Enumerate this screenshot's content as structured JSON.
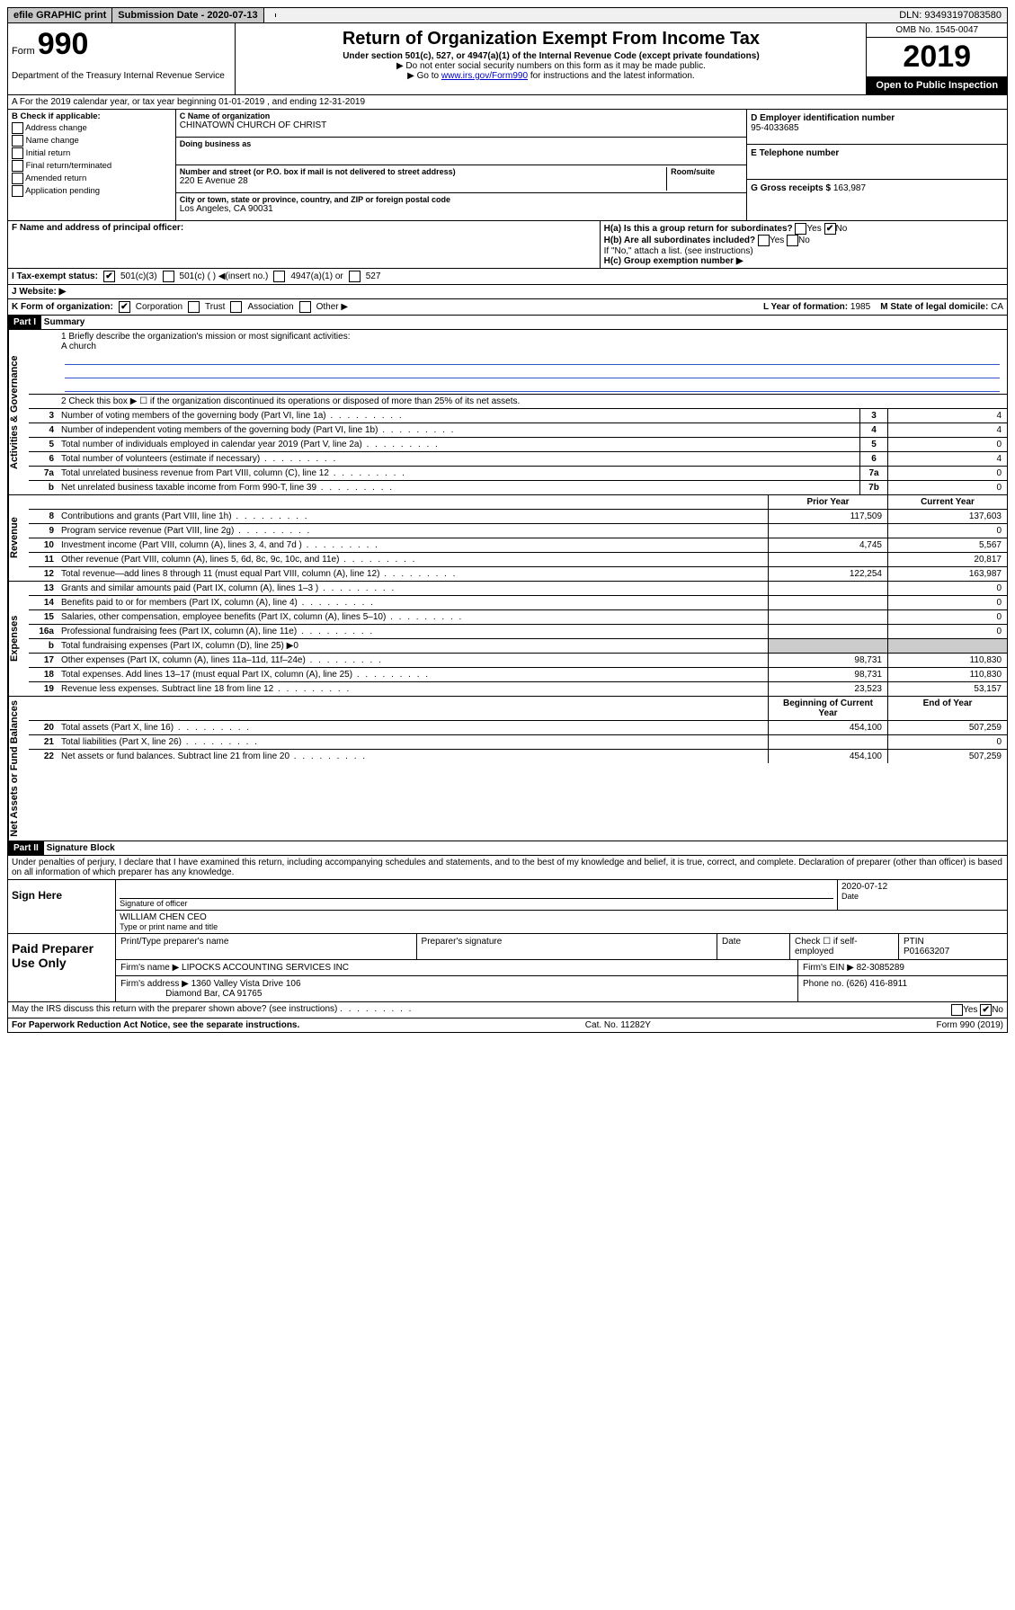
{
  "topbar": {
    "efile": "efile GRAPHIC print",
    "submission_label": "Submission Date - 2020-07-13",
    "dln": "DLN: 93493197083580"
  },
  "header": {
    "form_prefix": "Form",
    "form_no": "990",
    "dept": "Department of the Treasury\nInternal Revenue Service",
    "title": "Return of Organization Exempt From Income Tax",
    "subtitle": "Under section 501(c), 527, or 4947(a)(1) of the Internal Revenue Code (except private foundations)",
    "arrow1": "▶ Do not enter social security numbers on this form as it may be made public.",
    "arrow2_pre": "▶ Go to ",
    "arrow2_link": "www.irs.gov/Form990",
    "arrow2_post": " for instructions and the latest information.",
    "omb": "OMB No. 1545-0047",
    "year": "2019",
    "openpub": "Open to Public Inspection"
  },
  "rowA": "A  For the 2019 calendar year, or tax year beginning 01-01-2019   , and ending 12-31-2019",
  "sectionB": {
    "label": "B Check if applicable:",
    "items": [
      "Address change",
      "Name change",
      "Initial return",
      "Final return/terminated",
      "Amended return",
      "Application pending"
    ]
  },
  "sectionC": {
    "name_label": "C Name of organization",
    "name": "CHINATOWN CHURCH OF CHRIST",
    "dba_label": "Doing business as",
    "dba": "",
    "street_label": "Number and street (or P.O. box if mail is not delivered to street address)",
    "room_label": "Room/suite",
    "street": "220 E Avenue 28",
    "city_label": "City or town, state or province, country, and ZIP or foreign postal code",
    "city": "Los Angeles, CA  90031"
  },
  "sectionDE": {
    "d_label": "D Employer identification number",
    "d_value": "95-4033685",
    "e_label": "E Telephone number",
    "e_value": "",
    "g_label": "G Gross receipts $",
    "g_value": "163,987"
  },
  "sectionF": {
    "label": "F  Name and address of principal officer:",
    "value": ""
  },
  "sectionH": {
    "a_label": "H(a)  Is this a group return for subordinates?",
    "a_yes": "Yes",
    "a_no": "No",
    "b_label": "H(b)  Are all subordinates included?",
    "b_yes": "Yes",
    "b_no": "No",
    "b_note": "If \"No,\" attach a list. (see instructions)",
    "c_label": "H(c)  Group exemption number ▶"
  },
  "rowI": {
    "label": "I   Tax-exempt status:",
    "opt1": "501(c)(3)",
    "opt2": "501(c) (  ) ◀(insert no.)",
    "opt3": "4947(a)(1) or",
    "opt4": "527"
  },
  "rowJ": {
    "label": "J   Website: ▶",
    "value": ""
  },
  "rowK": {
    "label": "K Form of organization:",
    "opts": [
      "Corporation",
      "Trust",
      "Association",
      "Other ▶"
    ]
  },
  "rowL": {
    "label": "L Year of formation:",
    "value": "1985"
  },
  "rowM": {
    "label": "M State of legal domicile:",
    "value": "CA"
  },
  "partI": {
    "header": "Part I",
    "title": "Summary",
    "q1": "1  Briefly describe the organization's mission or most significant activities:",
    "q1_ans": "A church",
    "q2": "2    Check this box ▶ ☐  if the organization discontinued its operations or disposed of more than 25% of its net assets.",
    "tab_activities": "Activities & Governance",
    "tab_revenue": "Revenue",
    "tab_expenses": "Expenses",
    "tab_net": "Net Assets or Fund Balances",
    "col_prior": "Prior Year",
    "col_current": "Current Year",
    "col_begin": "Beginning of Current Year",
    "col_end": "End of Year",
    "rows_gov": [
      {
        "n": "3",
        "d": "Number of voting members of the governing body (Part VI, line 1a)",
        "c": "3",
        "v": "4"
      },
      {
        "n": "4",
        "d": "Number of independent voting members of the governing body (Part VI, line 1b)",
        "c": "4",
        "v": "4"
      },
      {
        "n": "5",
        "d": "Total number of individuals employed in calendar year 2019 (Part V, line 2a)",
        "c": "5",
        "v": "0"
      },
      {
        "n": "6",
        "d": "Total number of volunteers (estimate if necessary)",
        "c": "6",
        "v": "4"
      },
      {
        "n": "7a",
        "d": "Total unrelated business revenue from Part VIII, column (C), line 12",
        "c": "7a",
        "v": "0"
      },
      {
        "n": "b",
        "d": "Net unrelated business taxable income from Form 990-T, line 39",
        "c": "7b",
        "v": "0"
      }
    ],
    "rows_rev": [
      {
        "n": "8",
        "d": "Contributions and grants (Part VIII, line 1h)",
        "p": "117,509",
        "c": "137,603"
      },
      {
        "n": "9",
        "d": "Program service revenue (Part VIII, line 2g)",
        "p": "",
        "c": "0"
      },
      {
        "n": "10",
        "d": "Investment income (Part VIII, column (A), lines 3, 4, and 7d )",
        "p": "4,745",
        "c": "5,567"
      },
      {
        "n": "11",
        "d": "Other revenue (Part VIII, column (A), lines 5, 6d, 8c, 9c, 10c, and 11e)",
        "p": "",
        "c": "20,817"
      },
      {
        "n": "12",
        "d": "Total revenue—add lines 8 through 11 (must equal Part VIII, column (A), line 12)",
        "p": "122,254",
        "c": "163,987"
      }
    ],
    "rows_exp": [
      {
        "n": "13",
        "d": "Grants and similar amounts paid (Part IX, column (A), lines 1–3 )",
        "p": "",
        "c": "0"
      },
      {
        "n": "14",
        "d": "Benefits paid to or for members (Part IX, column (A), line 4)",
        "p": "",
        "c": "0"
      },
      {
        "n": "15",
        "d": "Salaries, other compensation, employee benefits (Part IX, column (A), lines 5–10)",
        "p": "",
        "c": "0"
      },
      {
        "n": "16a",
        "d": "Professional fundraising fees (Part IX, column (A), line 11e)",
        "p": "",
        "c": "0"
      },
      {
        "n": "b",
        "d": "Total fundraising expenses (Part IX, column (D), line 25) ▶0",
        "p": null,
        "c": null
      },
      {
        "n": "17",
        "d": "Other expenses (Part IX, column (A), lines 11a–11d, 11f–24e)",
        "p": "98,731",
        "c": "110,830"
      },
      {
        "n": "18",
        "d": "Total expenses. Add lines 13–17 (must equal Part IX, column (A), line 25)",
        "p": "98,731",
        "c": "110,830"
      },
      {
        "n": "19",
        "d": "Revenue less expenses. Subtract line 18 from line 12",
        "p": "23,523",
        "c": "53,157"
      }
    ],
    "rows_net": [
      {
        "n": "20",
        "d": "Total assets (Part X, line 16)",
        "p": "454,100",
        "c": "507,259"
      },
      {
        "n": "21",
        "d": "Total liabilities (Part X, line 26)",
        "p": "",
        "c": "0"
      },
      {
        "n": "22",
        "d": "Net assets or fund balances. Subtract line 21 from line 20",
        "p": "454,100",
        "c": "507,259"
      }
    ]
  },
  "partII": {
    "header": "Part II",
    "title": "Signature Block",
    "perjury": "Under penalties of perjury, I declare that I have examined this return, including accompanying schedules and statements, and to the best of my knowledge and belief, it is true, correct, and complete. Declaration of preparer (other than officer) is based on all information of which preparer has any knowledge."
  },
  "sign": {
    "here": "Sign Here",
    "sig_label": "Signature of officer",
    "date_label": "Date",
    "date": "2020-07-12",
    "name": "WILLIAM CHEN CEO",
    "name_label": "Type or print name and title"
  },
  "paid": {
    "label": "Paid Preparer Use Only",
    "h1": "Print/Type preparer's name",
    "h2": "Preparer's signature",
    "h3": "Date",
    "h4_check": "Check ☐ if self-employed",
    "h5": "PTIN",
    "ptin": "P01663207",
    "firm_name_label": "Firm's name    ▶",
    "firm_name": "LIPOCKS ACCOUNTING SERVICES INC",
    "firm_ein_label": "Firm's EIN ▶",
    "firm_ein": "82-3085289",
    "firm_addr_label": "Firm's address ▶",
    "firm_addr1": "1360 Valley Vista Drive 106",
    "firm_addr2": "Diamond Bar, CA  91765",
    "phone_label": "Phone no.",
    "phone": "(626) 416-8911"
  },
  "footer": {
    "q": "May the IRS discuss this return with the preparer shown above? (see instructions)",
    "yes": "Yes",
    "no": "No",
    "paperwork": "For Paperwork Reduction Act Notice, see the separate instructions.",
    "cat": "Cat. No. 11282Y",
    "form": "Form 990 (2019)"
  }
}
